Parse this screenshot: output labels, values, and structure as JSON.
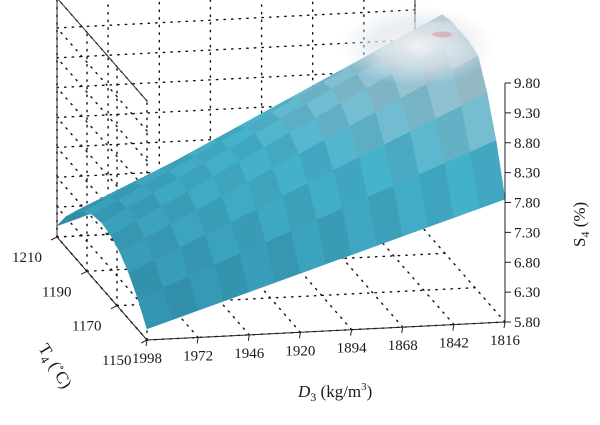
{
  "chart_data": {
    "type": "surface",
    "x_axis": {
      "label_var": "D",
      "label_sub": "3",
      "label_unit_pre": " (kg/m",
      "label_unit_sup": "3",
      "label_unit_post": ")",
      "ticks": [
        "1998",
        "1972",
        "1946",
        "1920",
        "1894",
        "1868",
        "1842",
        "1816"
      ],
      "range": [
        1998,
        1816
      ]
    },
    "y_axis": {
      "label_var": "T",
      "label_sub": "4",
      "label_unit_pre": " (",
      "label_unit_sup": "∘",
      "label_unit_post": "C)",
      "ticks": [
        "1150",
        "1170",
        "1190",
        "1210"
      ],
      "range": [
        1150,
        1210
      ]
    },
    "z_axis": {
      "label_var": "S",
      "label_sub": "4",
      "label_unit": " (%)",
      "ticks": [
        "5.80",
        "6.30",
        "6.80",
        "7.30",
        "7.80",
        "8.30",
        "8.80",
        "9.30",
        "9.80"
      ],
      "range": [
        5.8,
        9.8
      ]
    },
    "surface": {
      "peak": {
        "D3": 1816,
        "T4": 1180,
        "S4": 9.8
      },
      "samples": [
        {
          "D3": 1998,
          "T4": 1150,
          "S4": 5.8
        },
        {
          "D3": 1998,
          "T4": 1180,
          "S4": 7.3
        },
        {
          "D3": 1998,
          "T4": 1210,
          "S4": 7.0
        },
        {
          "D3": 1816,
          "T4": 1150,
          "S4": 7.7
        },
        {
          "D3": 1816,
          "T4": 1180,
          "S4": 9.8
        },
        {
          "D3": 1816,
          "T4": 1210,
          "S4": 7.6
        }
      ]
    },
    "colors": {
      "surface_low": "#2f8fac",
      "surface_mid": "#46b3cd",
      "surface_high": "#b8cbd6",
      "peak_tint": "#d99aa6"
    },
    "grid": true
  }
}
